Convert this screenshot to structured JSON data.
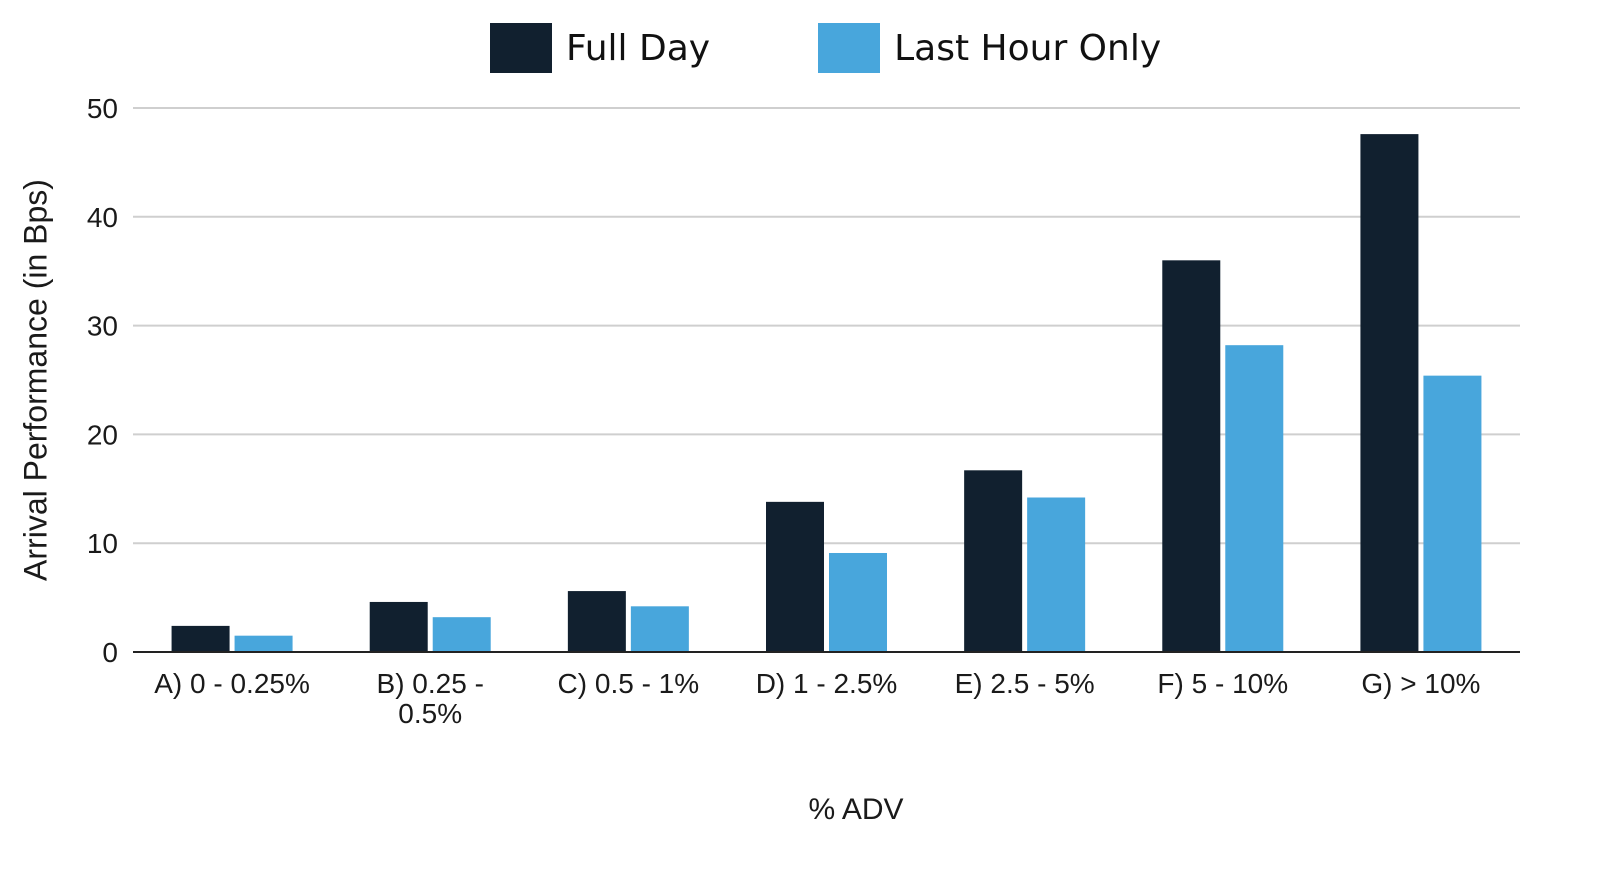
{
  "chart_data": {
    "type": "bar",
    "title": "",
    "xlabel": "% ADV",
    "ylabel": "Arrival Performance (in Bps)",
    "ylim": [
      0,
      50
    ],
    "yticks": [
      0,
      10,
      20,
      30,
      40,
      50
    ],
    "grid": true,
    "legend_position": "top-center",
    "categories": [
      [
        "A) 0 - 0.25%"
      ],
      [
        "B) 0.25 -",
        "0.5%"
      ],
      [
        "C) 0.5 - 1%"
      ],
      [
        "D) 1 - 2.5%"
      ],
      [
        "E) 2.5 - 5%"
      ],
      [
        "F) 5 - 10%"
      ],
      [
        "G) > 10%"
      ]
    ],
    "series": [
      {
        "name": "Full Day",
        "color": "#11202f",
        "values": [
          2.4,
          4.6,
          5.6,
          13.8,
          16.7,
          36.0,
          47.6
        ]
      },
      {
        "name": "Last Hour Only",
        "color": "#48a6dc",
        "values": [
          1.5,
          3.2,
          4.2,
          9.1,
          14.2,
          28.2,
          25.4
        ]
      }
    ]
  }
}
